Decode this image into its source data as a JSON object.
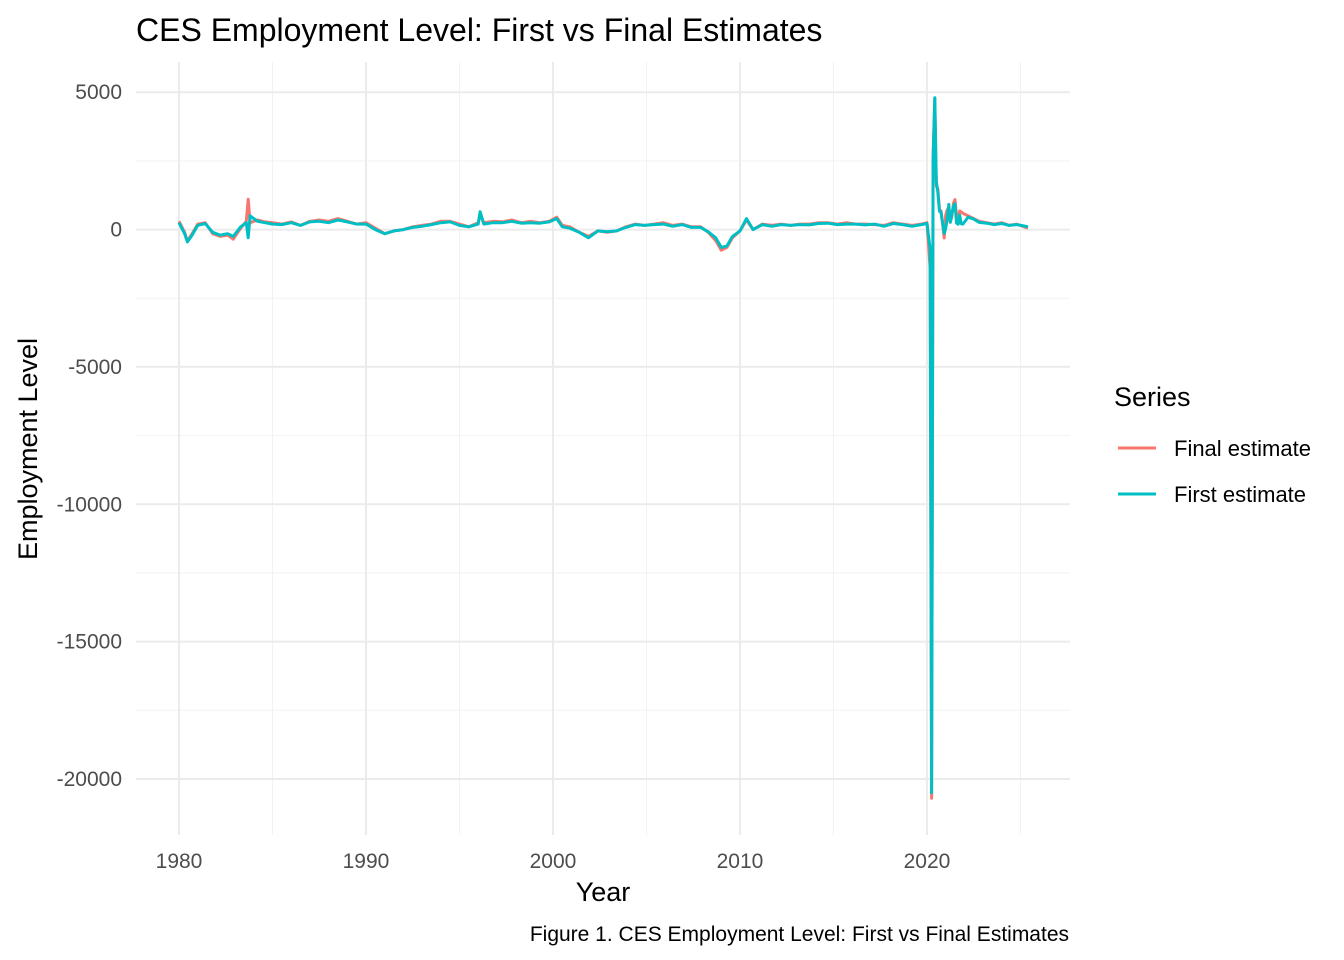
{
  "chart_data": {
    "type": "line",
    "title": "CES Employment Level: First vs Final Estimates",
    "xlabel": "Year",
    "ylabel": "Employment Level",
    "caption": "Figure 1. CES Employment Level: First vs Final Estimates",
    "xlim": [
      1977.7,
      2027.65
    ],
    "ylim": [
      -22040,
      6100
    ],
    "x_ticks": [
      1980,
      1990,
      2000,
      2010,
      2020
    ],
    "y_ticks": [
      5000,
      0,
      -5000,
      -10000,
      -15000,
      -20000
    ],
    "grid": true,
    "legend": {
      "title": "Series",
      "placement": "right"
    },
    "series": [
      {
        "name": "Final estimate",
        "color": "#F8766D",
        "points": [
          [
            1980.0,
            300
          ],
          [
            1980.3,
            -100
          ],
          [
            1980.45,
            -420
          ],
          [
            1980.7,
            -150
          ],
          [
            1981.0,
            200
          ],
          [
            1981.4,
            250
          ],
          [
            1981.8,
            -150
          ],
          [
            1982.2,
            -250
          ],
          [
            1982.6,
            -200
          ],
          [
            1982.9,
            -350
          ],
          [
            1983.3,
            50
          ],
          [
            1983.6,
            300
          ],
          [
            1983.7,
            1100
          ],
          [
            1983.8,
            250
          ],
          [
            1984.2,
            350
          ],
          [
            1984.6,
            280
          ],
          [
            1985.0,
            250
          ],
          [
            1985.5,
            200
          ],
          [
            1986.0,
            280
          ],
          [
            1986.5,
            150
          ],
          [
            1987.0,
            300
          ],
          [
            1987.5,
            350
          ],
          [
            1988.0,
            300
          ],
          [
            1988.5,
            400
          ],
          [
            1989.0,
            300
          ],
          [
            1989.5,
            200
          ],
          [
            1990.0,
            250
          ],
          [
            1990.5,
            50
          ],
          [
            1991.0,
            -150
          ],
          [
            1991.5,
            -50
          ],
          [
            1992.0,
            0
          ],
          [
            1992.5,
            100
          ],
          [
            1993.0,
            150
          ],
          [
            1993.5,
            200
          ],
          [
            1994.0,
            300
          ],
          [
            1994.5,
            300
          ],
          [
            1995.0,
            200
          ],
          [
            1995.5,
            100
          ],
          [
            1996.0,
            250
          ],
          [
            1996.1,
            550
          ],
          [
            1996.3,
            250
          ],
          [
            1996.8,
            300
          ],
          [
            1997.3,
            280
          ],
          [
            1997.8,
            350
          ],
          [
            1998.3,
            250
          ],
          [
            1998.8,
            300
          ],
          [
            1999.3,
            250
          ],
          [
            1999.8,
            300
          ],
          [
            2000.2,
            450
          ],
          [
            2000.5,
            150
          ],
          [
            2000.9,
            100
          ],
          [
            2001.4,
            -100
          ],
          [
            2001.9,
            -250
          ],
          [
            2002.4,
            -50
          ],
          [
            2002.9,
            -100
          ],
          [
            2003.4,
            -50
          ],
          [
            2003.9,
            100
          ],
          [
            2004.4,
            200
          ],
          [
            2004.9,
            150
          ],
          [
            2005.4,
            200
          ],
          [
            2005.9,
            250
          ],
          [
            2006.4,
            150
          ],
          [
            2006.9,
            200
          ],
          [
            2007.4,
            100
          ],
          [
            2007.9,
            100
          ],
          [
            2008.3,
            -100
          ],
          [
            2008.7,
            -400
          ],
          [
            2009.0,
            -750
          ],
          [
            2009.3,
            -650
          ],
          [
            2009.6,
            -300
          ],
          [
            2010.0,
            -50
          ],
          [
            2010.35,
            350
          ],
          [
            2010.7,
            0
          ],
          [
            2011.2,
            200
          ],
          [
            2011.7,
            150
          ],
          [
            2012.2,
            200
          ],
          [
            2012.7,
            150
          ],
          [
            2013.2,
            200
          ],
          [
            2013.7,
            200
          ],
          [
            2014.2,
            250
          ],
          [
            2014.7,
            250
          ],
          [
            2015.2,
            200
          ],
          [
            2015.7,
            250
          ],
          [
            2016.2,
            200
          ],
          [
            2016.7,
            200
          ],
          [
            2017.2,
            180
          ],
          [
            2017.7,
            150
          ],
          [
            2018.2,
            250
          ],
          [
            2018.7,
            200
          ],
          [
            2019.2,
            150
          ],
          [
            2019.7,
            200
          ],
          [
            2020.0,
            250
          ],
          [
            2020.17,
            -1400
          ],
          [
            2020.25,
            -20700
          ],
          [
            2020.33,
            2725
          ],
          [
            2020.42,
            4781
          ],
          [
            2020.5,
            1583
          ],
          [
            2020.58,
            1490
          ],
          [
            2020.67,
            716
          ],
          [
            2020.75,
            680
          ],
          [
            2020.83,
            264
          ],
          [
            2020.92,
            -306
          ],
          [
            2021.0,
            520
          ],
          [
            2021.08,
            710
          ],
          [
            2021.17,
            785
          ],
          [
            2021.25,
            269
          ],
          [
            2021.33,
            447
          ],
          [
            2021.42,
            962
          ],
          [
            2021.5,
            1091
          ],
          [
            2021.58,
            517
          ],
          [
            2021.67,
            424
          ],
          [
            2021.75,
            677
          ],
          [
            2021.83,
            647
          ],
          [
            2021.92,
            588
          ],
          [
            2022.2,
            500
          ],
          [
            2022.5,
            400
          ],
          [
            2022.8,
            300
          ],
          [
            2023.2,
            250
          ],
          [
            2023.6,
            200
          ],
          [
            2024.0,
            250
          ],
          [
            2024.4,
            150
          ],
          [
            2024.8,
            200
          ],
          [
            2025.2,
            100
          ],
          [
            2025.4,
            50
          ]
        ]
      },
      {
        "name": "First estimate",
        "color": "#00BFC4",
        "points": [
          [
            1980.0,
            250
          ],
          [
            1980.3,
            -150
          ],
          [
            1980.45,
            -450
          ],
          [
            1980.7,
            -200
          ],
          [
            1981.0,
            150
          ],
          [
            1981.4,
            220
          ],
          [
            1981.8,
            -100
          ],
          [
            1982.2,
            -200
          ],
          [
            1982.6,
            -150
          ],
          [
            1982.9,
            -250
          ],
          [
            1983.3,
            100
          ],
          [
            1983.6,
            250
          ],
          [
            1983.7,
            -300
          ],
          [
            1983.8,
            500
          ],
          [
            1984.2,
            300
          ],
          [
            1984.6,
            250
          ],
          [
            1985.0,
            200
          ],
          [
            1985.5,
            180
          ],
          [
            1986.0,
            250
          ],
          [
            1986.5,
            150
          ],
          [
            1987.0,
            280
          ],
          [
            1987.5,
            300
          ],
          [
            1988.0,
            250
          ],
          [
            1988.5,
            350
          ],
          [
            1989.0,
            280
          ],
          [
            1989.5,
            200
          ],
          [
            1990.0,
            200
          ],
          [
            1990.5,
            0
          ],
          [
            1991.0,
            -150
          ],
          [
            1991.5,
            -50
          ],
          [
            1992.0,
            0
          ],
          [
            1992.5,
            80
          ],
          [
            1993.0,
            120
          ],
          [
            1993.5,
            180
          ],
          [
            1994.0,
            250
          ],
          [
            1994.5,
            280
          ],
          [
            1995.0,
            150
          ],
          [
            1995.5,
            100
          ],
          [
            1996.0,
            200
          ],
          [
            1996.1,
            650
          ],
          [
            1996.3,
            200
          ],
          [
            1996.8,
            250
          ],
          [
            1997.3,
            250
          ],
          [
            1997.8,
            300
          ],
          [
            1998.3,
            230
          ],
          [
            1998.8,
            250
          ],
          [
            1999.3,
            230
          ],
          [
            1999.8,
            280
          ],
          [
            2000.2,
            400
          ],
          [
            2000.5,
            100
          ],
          [
            2000.9,
            50
          ],
          [
            2001.4,
            -100
          ],
          [
            2001.9,
            -300
          ],
          [
            2002.4,
            -50
          ],
          [
            2002.9,
            -80
          ],
          [
            2003.4,
            -50
          ],
          [
            2003.9,
            80
          ],
          [
            2004.4,
            180
          ],
          [
            2004.9,
            150
          ],
          [
            2005.4,
            180
          ],
          [
            2005.9,
            200
          ],
          [
            2006.4,
            120
          ],
          [
            2006.9,
            180
          ],
          [
            2007.4,
            80
          ],
          [
            2007.9,
            80
          ],
          [
            2008.3,
            -80
          ],
          [
            2008.7,
            -300
          ],
          [
            2009.0,
            -650
          ],
          [
            2009.3,
            -600
          ],
          [
            2009.6,
            -250
          ],
          [
            2010.0,
            -50
          ],
          [
            2010.35,
            400
          ],
          [
            2010.7,
            0
          ],
          [
            2011.2,
            180
          ],
          [
            2011.7,
            120
          ],
          [
            2012.2,
            180
          ],
          [
            2012.7,
            150
          ],
          [
            2013.2,
            180
          ],
          [
            2013.7,
            170
          ],
          [
            2014.2,
            220
          ],
          [
            2014.7,
            230
          ],
          [
            2015.2,
            180
          ],
          [
            2015.7,
            200
          ],
          [
            2016.2,
            200
          ],
          [
            2016.7,
            170
          ],
          [
            2017.2,
            200
          ],
          [
            2017.7,
            120
          ],
          [
            2018.2,
            220
          ],
          [
            2018.7,
            180
          ],
          [
            2019.2,
            120
          ],
          [
            2019.7,
            180
          ],
          [
            2020.0,
            220
          ],
          [
            2020.17,
            -700
          ],
          [
            2020.25,
            -20500
          ],
          [
            2020.33,
            2509
          ],
          [
            2020.42,
            4800
          ],
          [
            2020.5,
            1763
          ],
          [
            2020.58,
            1371
          ],
          [
            2020.67,
            661
          ],
          [
            2020.75,
            638
          ],
          [
            2020.83,
            245
          ],
          [
            2020.92,
            -140
          ],
          [
            2021.0,
            49
          ],
          [
            2021.08,
            379
          ],
          [
            2021.17,
            916
          ],
          [
            2021.25,
            266
          ],
          [
            2021.33,
            559
          ],
          [
            2021.42,
            850
          ],
          [
            2021.5,
            943
          ],
          [
            2021.58,
            235
          ],
          [
            2021.67,
            194
          ],
          [
            2021.75,
            531
          ],
          [
            2021.83,
            210
          ],
          [
            2021.92,
            199
          ],
          [
            2022.2,
            450
          ],
          [
            2022.5,
            380
          ],
          [
            2022.8,
            260
          ],
          [
            2023.2,
            230
          ],
          [
            2023.6,
            180
          ],
          [
            2024.0,
            220
          ],
          [
            2024.4,
            150
          ],
          [
            2024.8,
            180
          ],
          [
            2025.2,
            130
          ],
          [
            2025.4,
            100
          ]
        ]
      }
    ]
  }
}
